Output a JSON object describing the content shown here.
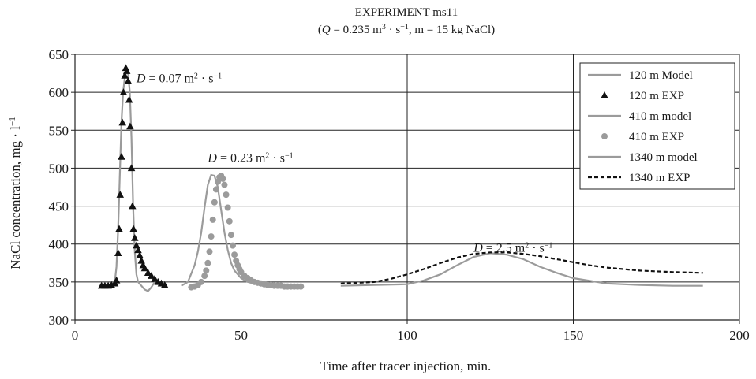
{
  "chart_data": {
    "type": "line",
    "title": "EXPERIMENT ms11",
    "subtitle": {
      "open": "(",
      "q_symbol": "Q",
      "q_value": " = 0.235 m",
      "q_exp": "3",
      "q_mid": " · s",
      "q_exp2": "−1",
      "rest": ", m = 15 kg NaCl)"
    },
    "xlabel": "Time after tracer injection, min.",
    "ylabel": "NaCl concentration, mg · l",
    "ylabel_exp": "−1",
    "xlim": [
      0,
      200
    ],
    "ylim": [
      300,
      650
    ],
    "x_ticks": [
      0,
      50,
      100,
      150,
      200
    ],
    "y_ticks": [
      300,
      350,
      400,
      450,
      500,
      550,
      600,
      650
    ],
    "grid": true,
    "legend_position": "top-right",
    "annotations": [
      {
        "sym": "D",
        "text": " = 0.07 m",
        "exp": "2",
        "mid": " · s",
        "exp2": "−1",
        "x": 18.5,
        "y": 613
      },
      {
        "sym": "D",
        "text": " = 0.23 m",
        "exp": "2",
        "mid": " · s",
        "exp2": "−1",
        "x": 40,
        "y": 508
      },
      {
        "sym": "D",
        "text": " = 2.5 m",
        "exp": "2",
        "mid": " · s",
        "exp2": "−1",
        "x": 120,
        "y": 390
      }
    ],
    "series": [
      {
        "name": "120 m Model",
        "style": "line",
        "color": "#9b9b9b",
        "x": [
          8,
          10,
          11,
          12,
          12.5,
          13,
          13.5,
          14,
          14.5,
          15,
          15.5,
          16,
          16.5,
          17,
          17.5,
          18,
          18.5,
          19,
          20,
          21,
          22,
          23,
          24,
          25,
          26,
          27
        ],
        "y": [
          344,
          345,
          346,
          350,
          370,
          420,
          490,
          560,
          600,
          620,
          627,
          624,
          600,
          540,
          450,
          390,
          360,
          350,
          345,
          340,
          338,
          343,
          350,
          348,
          346,
          346
        ]
      },
      {
        "name": "120 m EXP",
        "style": "triangle",
        "color": "#111111",
        "x": [
          8,
          9,
          10,
          11,
          12,
          12.5,
          13,
          13.3,
          13.6,
          14,
          14.3,
          14.6,
          15,
          15.3,
          15.6,
          16,
          16.3,
          16.6,
          17,
          17.3,
          17.6,
          18,
          18.5,
          19,
          19.5,
          20,
          20.5,
          21,
          22,
          23,
          24,
          25,
          26,
          27
        ],
        "y": [
          345,
          345,
          345,
          346,
          348,
          352,
          388,
          420,
          465,
          515,
          560,
          600,
          622,
          632,
          628,
          615,
          590,
          555,
          500,
          450,
          420,
          408,
          398,
          392,
          385,
          378,
          372,
          368,
          362,
          358,
          354,
          350,
          348,
          346
        ]
      },
      {
        "name": "410 m model",
        "style": "line",
        "color": "#9b9b9b",
        "x": [
          32,
          34,
          36,
          37,
          38,
          39,
          40,
          41,
          42,
          43,
          44,
          45,
          46,
          47,
          48,
          50,
          52,
          54,
          56,
          58,
          60,
          62,
          64,
          66,
          68
        ],
        "y": [
          345,
          350,
          372,
          390,
          415,
          448,
          478,
          491,
          490,
          475,
          445,
          415,
          392,
          375,
          365,
          355,
          350,
          348,
          347,
          346,
          346,
          346,
          346,
          346,
          345
        ]
      },
      {
        "name": "410 m EXP",
        "style": "circle",
        "color": "#9b9b9b",
        "x": [
          35,
          36,
          37,
          38,
          39,
          39.5,
          40,
          40.5,
          41,
          41.5,
          42,
          42.5,
          43,
          43.5,
          44,
          44.5,
          45,
          45.5,
          46,
          46.5,
          47,
          47.5,
          48,
          48.5,
          49,
          49.5,
          50,
          51,
          52,
          53,
          54,
          55,
          56,
          57,
          58,
          59,
          60,
          61,
          62,
          63,
          64,
          65,
          66,
          67,
          68
        ],
        "y": [
          343,
          344,
          346,
          350,
          358,
          365,
          375,
          390,
          410,
          432,
          455,
          472,
          482,
          488,
          490,
          486,
          478,
          465,
          448,
          430,
          412,
          398,
          386,
          378,
          372,
          367,
          363,
          358,
          355,
          352,
          350,
          349,
          348,
          347,
          346,
          346,
          345,
          345,
          345,
          344,
          344,
          344,
          344,
          344,
          344
        ]
      },
      {
        "name": "1340 m model",
        "style": "line",
        "color": "#9b9b9b",
        "x": [
          80,
          90,
          100,
          105,
          110,
          115,
          120,
          125,
          130,
          135,
          140,
          145,
          150,
          160,
          170,
          180,
          189
        ],
        "y": [
          345,
          346,
          347,
          352,
          360,
          372,
          383,
          388,
          386,
          380,
          370,
          362,
          355,
          348,
          346,
          345,
          345
        ]
      },
      {
        "name": "1340 m EXP",
        "style": "dashed",
        "color": "#111111",
        "x": [
          80,
          90,
          95,
          100,
          105,
          110,
          115,
          120,
          125,
          130,
          135,
          140,
          145,
          150,
          155,
          160,
          165,
          170,
          175,
          180,
          189
        ],
        "y": [
          348,
          350,
          354,
          360,
          367,
          375,
          382,
          387,
          389,
          389,
          387,
          384,
          380,
          376,
          372,
          369,
          367,
          365,
          364,
          363,
          362
        ]
      }
    ]
  }
}
